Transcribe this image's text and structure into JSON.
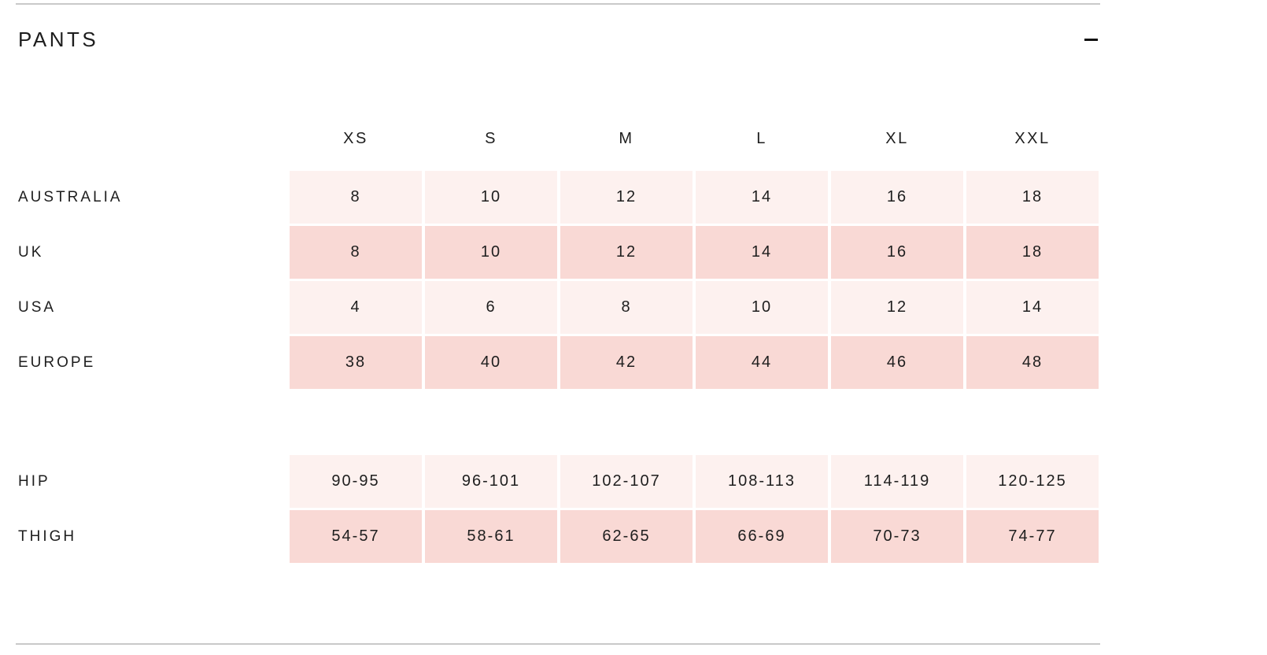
{
  "section": {
    "title": "PANTS",
    "collapse_icon": "minus",
    "state": "expanded"
  },
  "size_chart": {
    "columns": [
      "XS",
      "S",
      "M",
      "L",
      "XL",
      "XXL"
    ],
    "conversion_rows": [
      {
        "label": "AUSTRALIA",
        "values": [
          "8",
          "10",
          "12",
          "14",
          "16",
          "18"
        ]
      },
      {
        "label": "UK",
        "values": [
          "8",
          "10",
          "12",
          "14",
          "16",
          "18"
        ]
      },
      {
        "label": "USA",
        "values": [
          "4",
          "6",
          "8",
          "10",
          "12",
          "14"
        ]
      },
      {
        "label": "EUROPE",
        "values": [
          "38",
          "40",
          "42",
          "44",
          "46",
          "48"
        ]
      }
    ],
    "measurement_rows": [
      {
        "label": "HIP",
        "values": [
          "90-95",
          "96-101",
          "102-107",
          "108-113",
          "114-119",
          "120-125"
        ]
      },
      {
        "label": "THIGH",
        "values": [
          "54-57",
          "58-61",
          "62-65",
          "66-69",
          "70-73",
          "74-77"
        ]
      }
    ]
  },
  "colors": {
    "row_light": "#fdf1ef",
    "row_dark": "#f9d9d5",
    "text": "#1d1d1d",
    "divider": "#c9c9c9",
    "icon": "#111111"
  }
}
